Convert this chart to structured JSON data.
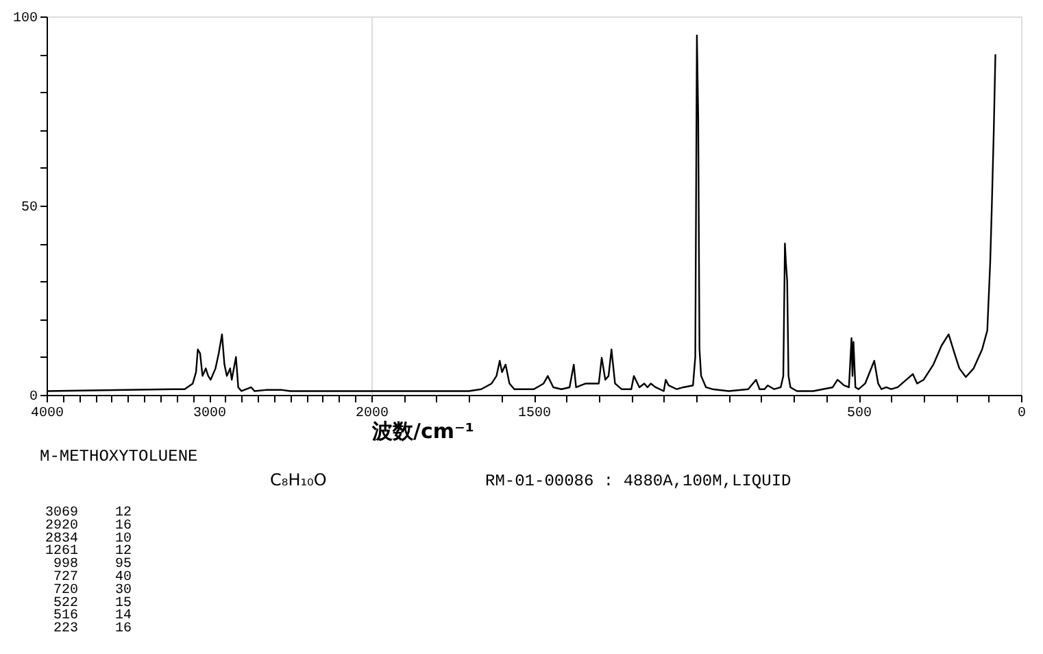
{
  "chart_data": [
    {
      "type": "line",
      "title": "M-METHOXYTOLUENE",
      "subtitle": "C₈H₁₀O",
      "xlim": [
        4000,
        2000
      ],
      "ylim": [
        0,
        100
      ],
      "xticks": [
        4000,
        {
          "value": 3900,
          "label": null
        },
        {
          "value": 3800,
          "label": null
        },
        {
          "value": 3700,
          "label": null
        },
        {
          "value": 3600,
          "label": null
        },
        {
          "value": 3500,
          "label": null
        },
        {
          "value": 3400,
          "label": null
        },
        {
          "value": 3300,
          "label": null
        },
        {
          "value": 3200,
          "label": null
        },
        {
          "value": 3100,
          "label": null
        },
        3000,
        {
          "value": 2900,
          "label": null
        },
        {
          "value": 2800,
          "label": null
        },
        {
          "value": 2700,
          "label": null
        },
        {
          "value": 2600,
          "label": null
        },
        {
          "value": 2500,
          "label": null
        },
        {
          "value": 2400,
          "label": null
        },
        {
          "value": 2300,
          "label": null
        },
        {
          "value": 2200,
          "label": null
        },
        {
          "value": 2100,
          "label": null
        },
        2000
      ],
      "yticks": [
        0,
        {
          "value": 10,
          "label": null
        },
        {
          "value": 20,
          "label": null
        },
        {
          "value": 30,
          "label": null
        },
        {
          "value": 40,
          "label": null
        },
        50,
        {
          "value": 60,
          "label": null
        },
        {
          "value": 70,
          "label": null
        },
        {
          "value": 80,
          "label": null
        },
        {
          "value": 90,
          "label": null
        },
        100
      ],
      "series": [
        {
          "color": "#000000",
          "x": [
            4000,
            3230,
            3150,
            3100,
            3080,
            3069,
            3055,
            3040,
            3020,
            3005,
            2990,
            2960,
            2940,
            2920,
            2905,
            2890,
            2870,
            2860,
            2834,
            2820,
            2800,
            2740,
            2720,
            2650,
            2550,
            2500,
            2000
          ],
          "values": [
            1,
            1.5,
            1.5,
            3,
            6,
            12,
            11,
            5,
            7,
            5,
            4,
            7,
            11,
            16,
            8,
            5,
            7,
            4,
            10,
            2,
            1,
            2,
            1,
            1.3,
            1.3,
            1,
            1
          ]
        }
      ],
      "annotations": [
        "RM-01-00086 : 4880A,100M,LIQUID",
        "3069",
        "12",
        "2920",
        "16",
        "2834",
        "10",
        "1261",
        "12",
        "998",
        "95",
        "727",
        "40",
        "720",
        "30",
        "522",
        "15",
        "516",
        "14",
        "223",
        "16"
      ]
    },
    {
      "type": "line",
      "xlabel": "波数/cm⁻¹",
      "tick_labels": "x",
      "xlim": [
        2000,
        0
      ],
      "ylim": [
        0,
        100
      ],
      "xticks": [
        {
          "value": 2000,
          "label": null
        },
        {
          "value": 1900,
          "label": null
        },
        {
          "value": 1800,
          "label": null
        },
        {
          "value": 1700,
          "label": null
        },
        {
          "value": 1600,
          "label": null
        },
        1500,
        {
          "value": 1400,
          "label": null
        },
        {
          "value": 1300,
          "label": null
        },
        {
          "value": 1200,
          "label": null
        },
        {
          "value": 1100,
          "label": null
        },
        {
          "value": 1000,
          "label": null
        },
        {
          "value": 900,
          "label": null
        },
        {
          "value": 800,
          "label": null
        },
        {
          "value": 700,
          "label": null
        },
        {
          "value": 600,
          "label": null
        },
        500,
        {
          "value": 400,
          "label": null
        },
        {
          "value": 300,
          "label": null
        },
        {
          "value": 200,
          "label": null
        },
        {
          "value": 100,
          "label": null
        },
        0
      ],
      "series": [
        {
          "color": "#000000",
          "x": [
            2000,
            1700,
            1662,
            1630,
            1615,
            1605,
            1598,
            1587,
            1575,
            1560,
            1500,
            1470,
            1457,
            1440,
            1415,
            1390,
            1377,
            1370,
            1340,
            1328,
            1300,
            1291,
            1280,
            1270,
            1261,
            1250,
            1230,
            1200,
            1192,
            1175,
            1160,
            1150,
            1140,
            1125,
            1100,
            1094,
            1085,
            1060,
            1040,
            1010,
            1003,
            998,
            994,
            990,
            985,
            970,
            950,
            900,
            840,
            816,
            805,
            790,
            780,
            760,
            740,
            732,
            727,
            724,
            720,
            716,
            710,
            690,
            640,
            580,
            565,
            545,
            530,
            522,
            519,
            516,
            510,
            500,
            480,
            452,
            440,
            430,
            415,
            400,
            380,
            333,
            320,
            300,
            270,
            245,
            223,
            205,
            190,
            170,
            146,
            120,
            104,
            95,
            90,
            84,
            79
          ],
          "values": [
            1,
            1,
            1.5,
            3,
            5,
            9,
            6,
            8,
            3,
            1.5,
            1.5,
            3,
            5,
            2,
            1.5,
            2,
            8,
            2,
            3,
            3,
            3,
            9.8,
            4,
            5,
            12,
            3,
            1.5,
            1.5,
            5,
            2,
            3,
            2,
            3,
            2,
            1,
            4,
            2.5,
            1.5,
            2,
            2.5,
            10,
            95,
            74,
            12,
            5,
            2,
            1.5,
            1,
            1.5,
            4,
            1.5,
            1.5,
            2.5,
            1.5,
            2,
            5,
            40,
            35,
            30,
            5,
            2,
            1,
            1,
            2,
            4,
            2.5,
            2,
            15,
            5,
            14,
            2,
            1.5,
            3,
            9,
            3,
            1.5,
            2,
            1.5,
            2,
            5.5,
            3,
            4,
            8,
            13,
            16,
            11,
            7,
            4.7,
            7,
            12,
            17,
            35,
            50,
            70,
            90
          ]
        }
      ]
    }
  ]
}
